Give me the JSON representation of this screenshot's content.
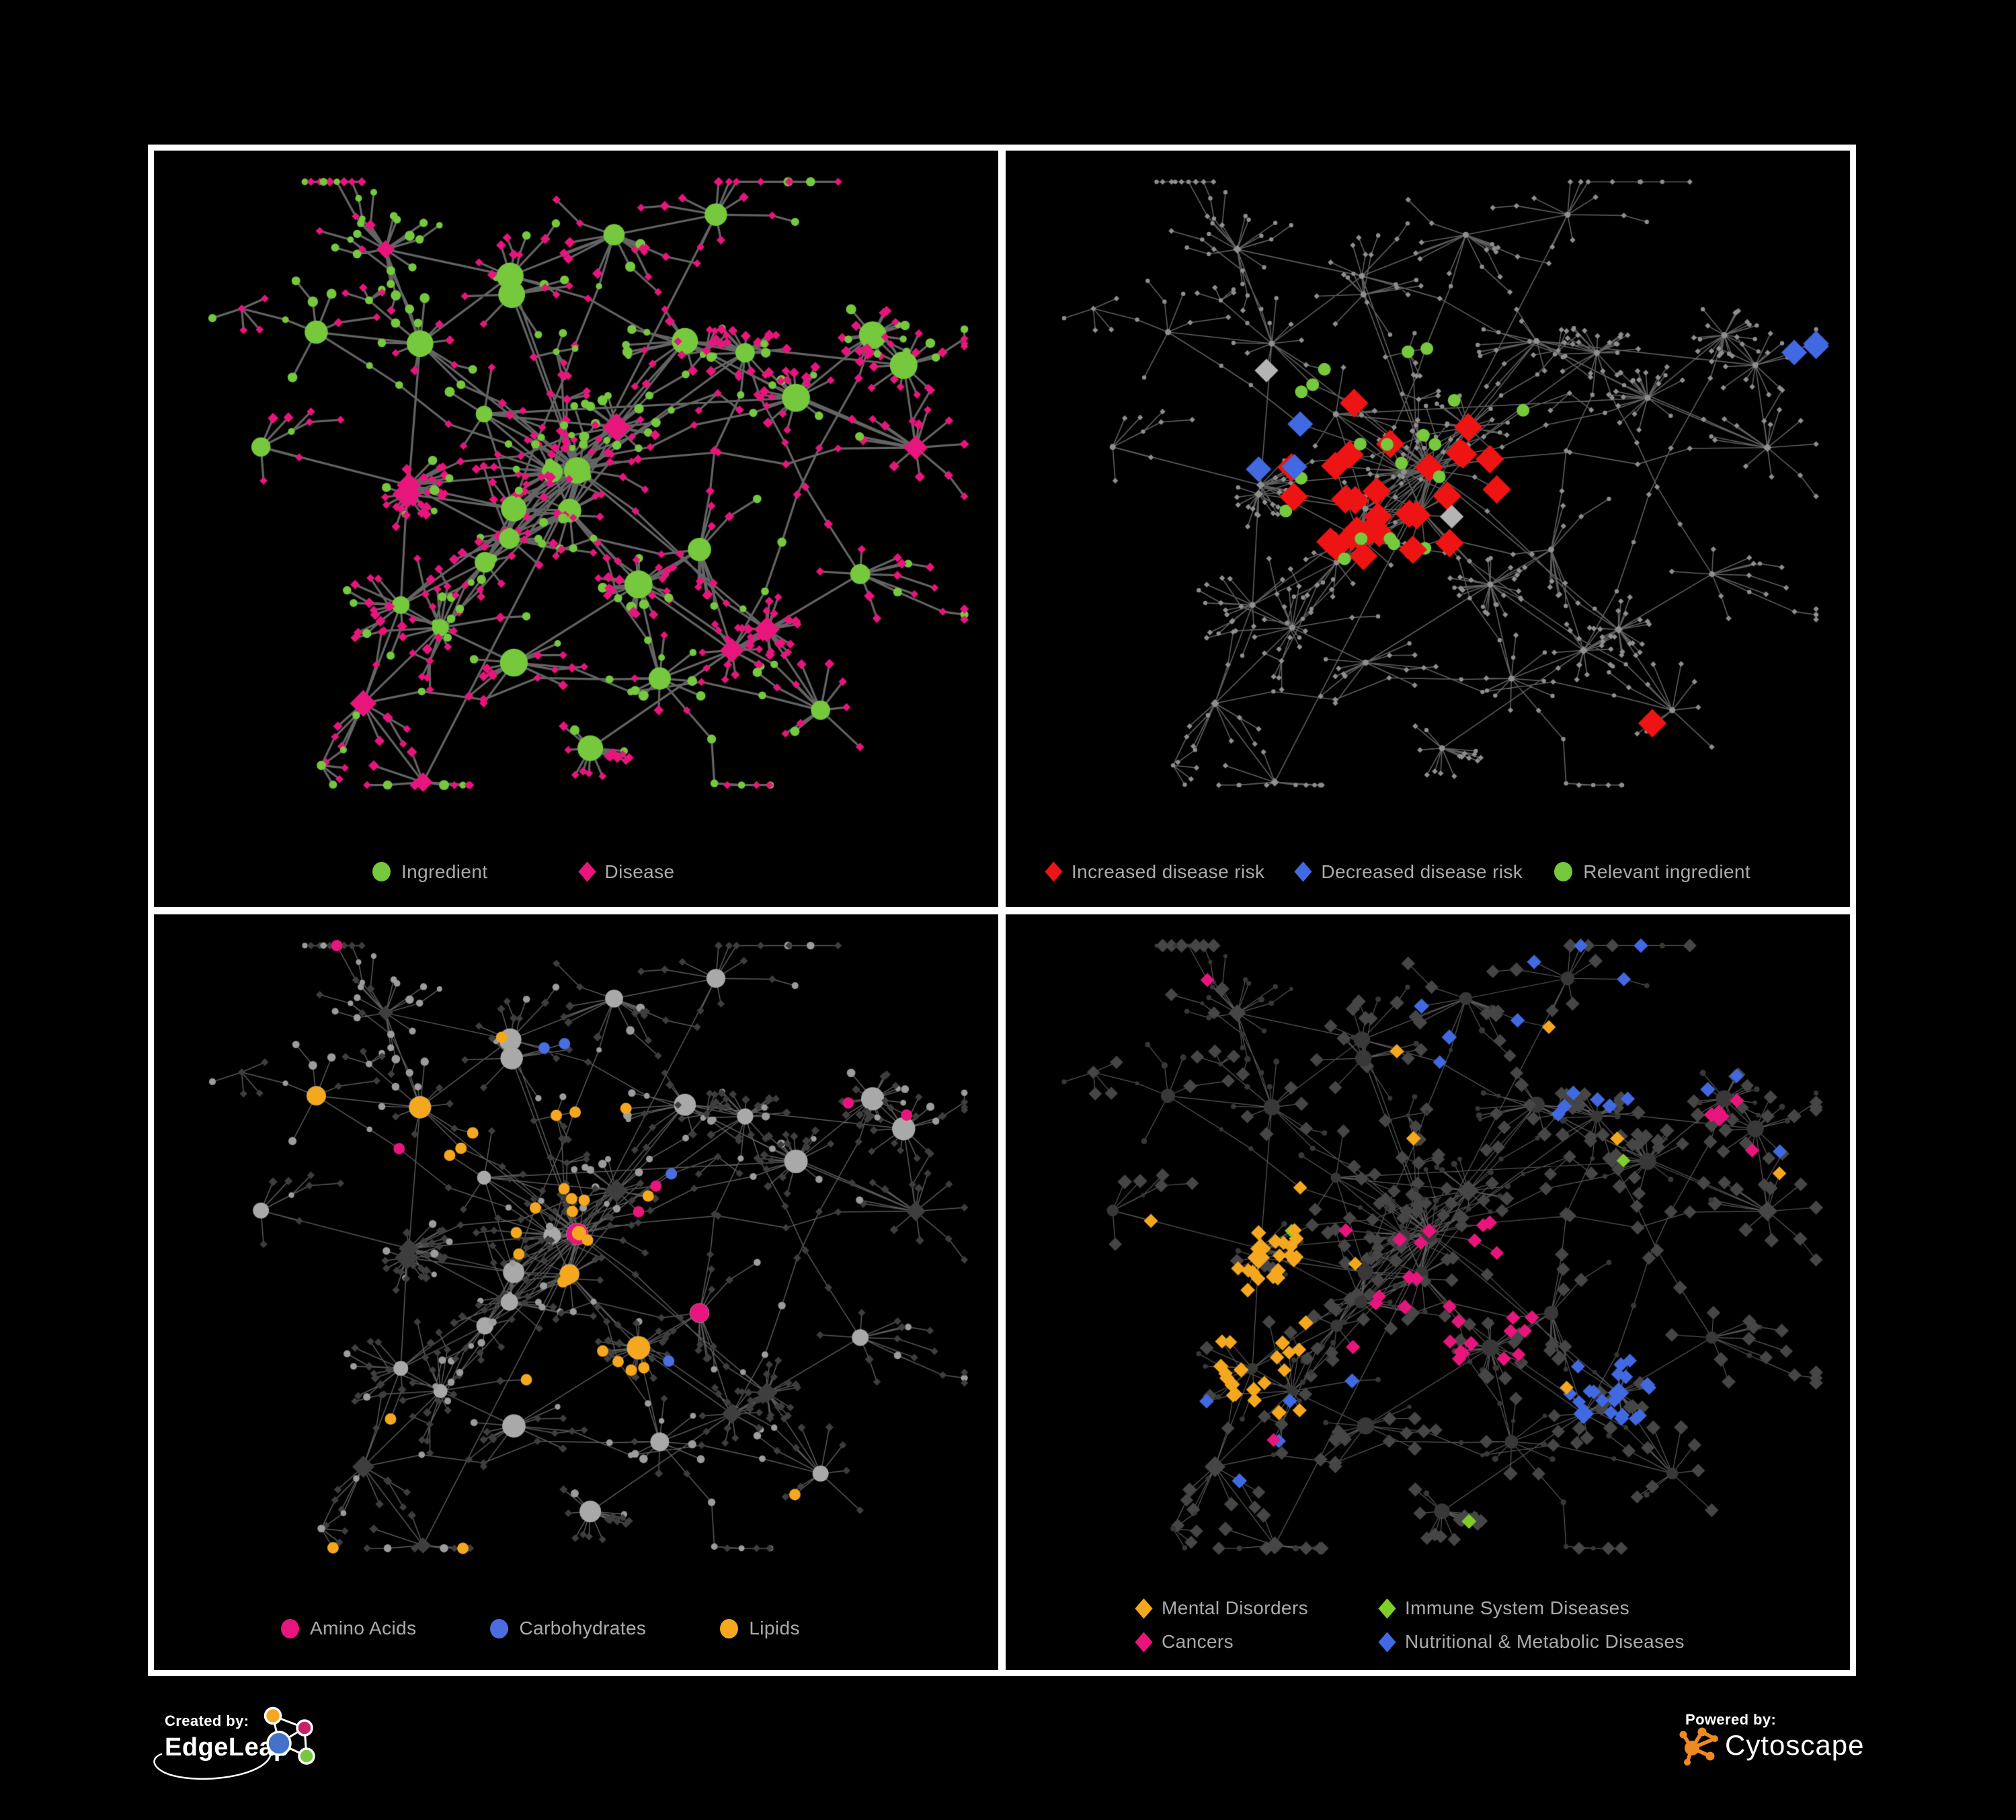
{
  "figure": {
    "background": "#000000",
    "frame_color": "#ffffff",
    "description": "Four views of the same ingredient-disease association network on black panels separated by a white cross frame"
  },
  "panels": [
    {
      "name": "ingredient-disease-network",
      "legend": [
        {
          "label": "Ingredient",
          "shape": "circle",
          "color": "#76c83c"
        },
        {
          "label": "Disease",
          "shape": "diamond",
          "color": "#e8157d"
        }
      ]
    },
    {
      "name": "disease-risk-network",
      "legend": [
        {
          "label": "Increased disease risk",
          "shape": "diamond",
          "color": "#ee1414"
        },
        {
          "label": "Decreased disease risk",
          "shape": "diamond",
          "color": "#4169e1"
        },
        {
          "label": "Relevant ingredient",
          "shape": "circle",
          "color": "#76c83c"
        }
      ]
    },
    {
      "name": "nutrient-class-network",
      "legend": [
        {
          "label": "Amino Acids",
          "shape": "circle",
          "color": "#e8157d"
        },
        {
          "label": "Carbohydrates",
          "shape": "circle",
          "color": "#4a6ee0"
        },
        {
          "label": "Lipids",
          "shape": "circle",
          "color": "#f5a81e"
        }
      ]
    },
    {
      "name": "disease-class-network",
      "legend": [
        {
          "label": "Mental Disorders",
          "shape": "diamond",
          "color": "#f5a81e"
        },
        {
          "label": "Cancers",
          "shape": "diamond",
          "color": "#e8157d"
        },
        {
          "label": "Immune System Diseases",
          "shape": "diamond",
          "color": "#80cc28"
        },
        {
          "label": "Nutritional & Metabolic Diseases",
          "shape": "diamond",
          "color": "#4169e1"
        }
      ]
    }
  ],
  "footer": {
    "created_by_label": "Created by:",
    "created_by_name": "EdgeLeap",
    "powered_by_label": "Powered by:",
    "powered_by_name": "Cytoscape",
    "cytoscape_orange": "#ee8a22",
    "edgeleap_logo_colors": {
      "blue": "#4472c8",
      "orange": "#f5a623",
      "magenta": "#cc1f6a",
      "green": "#76c83c"
    }
  },
  "chart_data": {
    "type": "network",
    "title": "",
    "shared_layout": true,
    "node_semantics": {
      "circle": "ingredient",
      "diamond": "disease"
    },
    "approx_node_count": 560,
    "approx_edge_count": 650,
    "layout_hint": "organic force-directed hairball with hub-and-spoke star clusters, dense core left-of-center, branching tree periphery; identical node positions reused in all four panels",
    "panels": [
      {
        "coloring": "all ingredients green circles, all diseases pink diamonds",
        "styles": {
          "edge": "#6f6f6f",
          "edge_width": 3.2,
          "edge_alpha": 0.9
        }
      },
      {
        "coloring": "network dimmed to small gray dots; highlighted diamonds = increased (red) / decreased (blue) disease risk, a few neutral silver diamonds; relevant ingredients as green circles near the core",
        "styles": {
          "edge": "#7d7d7d",
          "edge_width": 1.6,
          "edge_alpha": 0.75,
          "base_node": "#8f8f8f",
          "neutral_diamond": "#b4b4b4"
        }
      },
      {
        "coloring": "diseases dimmed dark gray diamonds; ingredient circles gray, highlighted by nutrient class: Amino Acids pink, Carbohydrates blue, Lipids amber",
        "styles": {
          "edge": "#8a8a8a",
          "edge_width": 1.5,
          "edge_alpha": 0.65,
          "base_circle": "#9c9c9c",
          "hub_circle": "#a9a9a9",
          "base_diamond": "#3e3e3e"
        }
      },
      {
        "coloring": "ingredients dimmed dark circles; disease diamonds dark gray, highlighted by class: Mental Disorders amber, Cancers pink, Immune System Diseases green, Nutritional & Metabolic Diseases blue",
        "styles": {
          "edge": "#a3a3a3",
          "edge_width": 1.2,
          "edge_alpha": 0.55,
          "base_circle": "#383838",
          "base_diamond": "#464646"
        }
      }
    ]
  }
}
